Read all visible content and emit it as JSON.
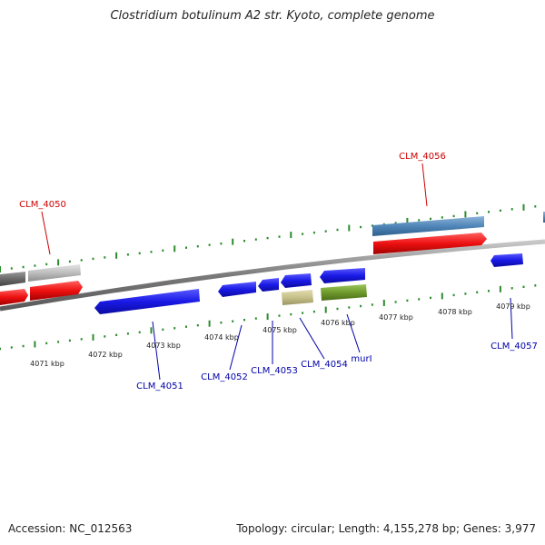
{
  "title": "Clostridium botulinum A2 str. Kyoto, complete genome",
  "footer": {
    "accession": "Accession: NC_012563",
    "stats": "Topology: circular; Length: 4,155,278 bp; Genes: 3,977"
  },
  "axis": {
    "ticks": [
      "4071 kbp",
      "4072 kbp",
      "4073 kbp",
      "4074 kbp",
      "4075 kbp",
      "4076 kbp",
      "4077 kbp",
      "4078 kbp",
      "4079 kbp"
    ]
  },
  "colors": {
    "backbone": "#8c8c8c",
    "tick": "#2e8b2e",
    "forward_label": "#cc0000",
    "reverse_label": "#0000aa",
    "blue": "#1a1ae6",
    "red": "#ee1111",
    "steelblue": "#4f86b8",
    "grey": "#bdbdbd",
    "darkgrey": "#6a6a6a",
    "khaki": "#c6c08a",
    "olive": "#6f9a2c"
  },
  "genes": {
    "labels": [
      "CLM_4050",
      "CLM_4056",
      "CLM_4051",
      "CLM_4052",
      "CLM_4053",
      "CLM_4054",
      "murI",
      "CLM_4057"
    ]
  }
}
